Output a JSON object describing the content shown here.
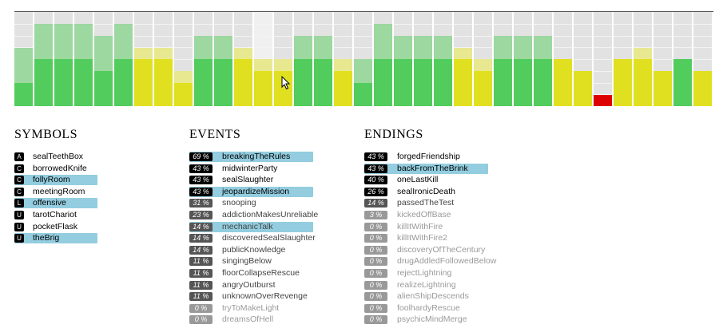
{
  "colors": {
    "green_solid": "#52cc5c",
    "green_light": "#9cd89f",
    "yellow_solid": "#e0e020",
    "yellow_light": "#e8e890",
    "red_solid": "#dd0000",
    "background_cell": "#e2e2e2",
    "highlight_row": "#93cddf"
  },
  "chart_data": {
    "type": "bar",
    "columns": [
      {
        "color": "green",
        "solid": 0.25,
        "light": 0.62
      },
      {
        "color": "green",
        "solid": 0.5,
        "light": 0.87
      },
      {
        "color": "green",
        "solid": 0.5,
        "light": 0.87
      },
      {
        "color": "green",
        "solid": 0.5,
        "light": 0.87
      },
      {
        "color": "green",
        "solid": 0.37,
        "light": 0.75
      },
      {
        "color": "green",
        "solid": 0.5,
        "light": 0.87
      },
      {
        "color": "yellow",
        "solid": 0.5,
        "light": 0.62
      },
      {
        "color": "yellow",
        "solid": 0.5,
        "light": 0.62
      },
      {
        "color": "yellow",
        "solid": 0.25,
        "light": 0.37
      },
      {
        "color": "green",
        "solid": 0.5,
        "light": 0.75
      },
      {
        "color": "green",
        "solid": 0.5,
        "light": 0.75
      },
      {
        "color": "yellow",
        "solid": 0.5,
        "light": 0.62
      },
      {
        "color": "yellow",
        "solid": 0.37,
        "light": 0.5,
        "highlight": true
      },
      {
        "color": "yellow",
        "solid": 0.37,
        "light": 0.5
      },
      {
        "color": "green",
        "solid": 0.5,
        "light": 0.75
      },
      {
        "color": "green",
        "solid": 0.5,
        "light": 0.75
      },
      {
        "color": "yellow",
        "solid": 0.37,
        "light": 0.5
      },
      {
        "color": "green",
        "solid": 0.25,
        "light": 0.5
      },
      {
        "color": "green",
        "solid": 0.5,
        "light": 0.87
      },
      {
        "color": "green",
        "solid": 0.5,
        "light": 0.75
      },
      {
        "color": "green",
        "solid": 0.5,
        "light": 0.75
      },
      {
        "color": "green",
        "solid": 0.5,
        "light": 0.75
      },
      {
        "color": "yellow",
        "solid": 0.5,
        "light": 0.62
      },
      {
        "color": "yellow",
        "solid": 0.37,
        "light": 0.5
      },
      {
        "color": "green",
        "solid": 0.5,
        "light": 0.75
      },
      {
        "color": "green",
        "solid": 0.5,
        "light": 0.75
      },
      {
        "color": "green",
        "solid": 0.5,
        "light": 0.75
      },
      {
        "color": "yellow",
        "solid": 0.5,
        "light": 0.5
      },
      {
        "color": "yellow",
        "solid": 0.37,
        "light": 0.37
      },
      {
        "color": "red",
        "solid": 0.12,
        "light": 0.12
      },
      {
        "color": "yellow",
        "solid": 0.5,
        "light": 0.5
      },
      {
        "color": "yellow",
        "solid": 0.5,
        "light": 0.62
      },
      {
        "color": "yellow",
        "solid": 0.37,
        "light": 0.37
      },
      {
        "color": "green",
        "solid": 0.5,
        "light": 0.5
      },
      {
        "color": "yellow",
        "solid": 0.37,
        "light": 0.37
      }
    ]
  },
  "symbols": {
    "title": "SYMBOLS",
    "items": [
      {
        "badge": "A",
        "label": "sealTeethBox",
        "highlight": false
      },
      {
        "badge": "C",
        "label": "borrowedKnife",
        "highlight": false
      },
      {
        "badge": "C",
        "label": "follyRoom",
        "highlight": true
      },
      {
        "badge": "C",
        "label": "meetingRoom",
        "highlight": false
      },
      {
        "badge": "L",
        "label": "offensive",
        "highlight": true
      },
      {
        "badge": "U",
        "label": "tarotChariot",
        "highlight": false
      },
      {
        "badge": "U",
        "label": "pocketFlask",
        "highlight": false
      },
      {
        "badge": "U",
        "label": "theBrig",
        "highlight": true
      }
    ]
  },
  "events": {
    "title": "EVENTS",
    "items": [
      {
        "pct": "69 %",
        "label": "breakingTheRules",
        "tone": "dark",
        "highlight": true
      },
      {
        "pct": "43 %",
        "label": "midwinterParty",
        "tone": "dark",
        "highlight": false
      },
      {
        "pct": "43 %",
        "label": "sealSlaughter",
        "tone": "dark",
        "highlight": false
      },
      {
        "pct": "43 %",
        "label": "jeopardizeMission",
        "tone": "dark",
        "highlight": true
      },
      {
        "pct": "31 %",
        "label": "snooping",
        "tone": "mid",
        "highlight": false
      },
      {
        "pct": "23 %",
        "label": "addictionMakesUnreliable",
        "tone": "mid",
        "highlight": false
      },
      {
        "pct": "14 %",
        "label": "mechanicTalk",
        "tone": "mid",
        "highlight": true
      },
      {
        "pct": "14 %",
        "label": "discoveredSealSlaughter",
        "tone": "mid",
        "highlight": false
      },
      {
        "pct": "14 %",
        "label": "publicKnowledge",
        "tone": "mid",
        "highlight": false
      },
      {
        "pct": "11 %",
        "label": "singingBelow",
        "tone": "mid",
        "highlight": false
      },
      {
        "pct": "11 %",
        "label": "floorCollapseRescue",
        "tone": "mid",
        "highlight": false
      },
      {
        "pct": "11 %",
        "label": "angryOutburst",
        "tone": "mid",
        "highlight": false
      },
      {
        "pct": "11 %",
        "label": "unknownOverRevenge",
        "tone": "mid",
        "highlight": false
      },
      {
        "pct": "0 %",
        "label": "tryToMakeLight",
        "tone": "zero",
        "highlight": false
      },
      {
        "pct": "0 %",
        "label": "dreamsOfHell",
        "tone": "zero",
        "highlight": false
      }
    ]
  },
  "endings": {
    "title": "ENDINGS",
    "items": [
      {
        "pct": "43 %",
        "label": "forgedFriendship",
        "tone": "dark",
        "highlight": false
      },
      {
        "pct": "43 %",
        "label": "backFromTheBrink",
        "tone": "dark",
        "highlight": true
      },
      {
        "pct": "40 %",
        "label": "oneLastKill",
        "tone": "dark",
        "highlight": false
      },
      {
        "pct": "26 %",
        "label": "sealIronicDeath",
        "tone": "dark",
        "highlight": false
      },
      {
        "pct": "14 %",
        "label": "passedTheTest",
        "tone": "mid",
        "highlight": false
      },
      {
        "pct": "3 %",
        "label": "kickedOffBase",
        "tone": "zero",
        "highlight": false
      },
      {
        "pct": "0 %",
        "label": "killItWithFire",
        "tone": "zero",
        "highlight": false
      },
      {
        "pct": "0 %",
        "label": "killItWithFire2",
        "tone": "zero",
        "highlight": false
      },
      {
        "pct": "0 %",
        "label": "discoveryOfTheCentury",
        "tone": "zero",
        "highlight": false
      },
      {
        "pct": "0 %",
        "label": "drugAddledFollowedBelow",
        "tone": "zero",
        "highlight": false
      },
      {
        "pct": "0 %",
        "label": "rejectLightning",
        "tone": "zero",
        "highlight": false
      },
      {
        "pct": "0 %",
        "label": "realizeLightning",
        "tone": "zero",
        "highlight": false
      },
      {
        "pct": "0 %",
        "label": "alienShipDescends",
        "tone": "zero",
        "highlight": false
      },
      {
        "pct": "0 %",
        "label": "foolhardyRescue",
        "tone": "zero",
        "highlight": false
      },
      {
        "pct": "0 %",
        "label": "psychicMindMerge",
        "tone": "zero",
        "highlight": false
      }
    ]
  }
}
